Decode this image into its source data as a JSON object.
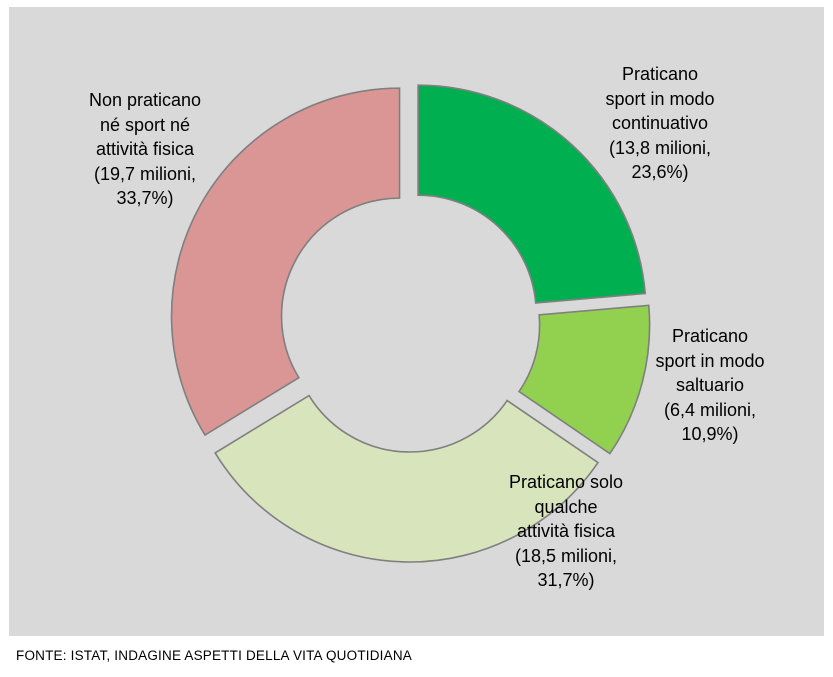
{
  "chart_data": {
    "type": "pie",
    "donut": true,
    "exploded": true,
    "categories": [
      "Praticano sport in modo continuativo",
      "Praticano sport in modo saltuario",
      "Praticano solo qualche attività fisica",
      "Non praticano né sport né attività fisica"
    ],
    "values": [
      23.6,
      10.9,
      31.7,
      33.7
    ],
    "colors": [
      "#00b050",
      "#92d050",
      "#d8e4bc",
      "#da9694"
    ],
    "labels": [
      "Praticano\nsport in modo\ncontinuativo\n(13,8 milioni,\n23,6%)",
      "Praticano\nsport in modo\nsaltuario\n(6,4 milioni,\n10,9%)",
      "Praticano solo\nqualche\nattività fisica\n(18,5 milioni,\n31,7%)",
      "Non praticano\nné sport né\nattività fisica\n(19,7 milioni,\n33,7%)"
    ],
    "background": "#d9d9d9",
    "source": "FONTE: ISTAT, INDAGINE ASPETTI DELLA VITA QUOTIDIANA"
  }
}
